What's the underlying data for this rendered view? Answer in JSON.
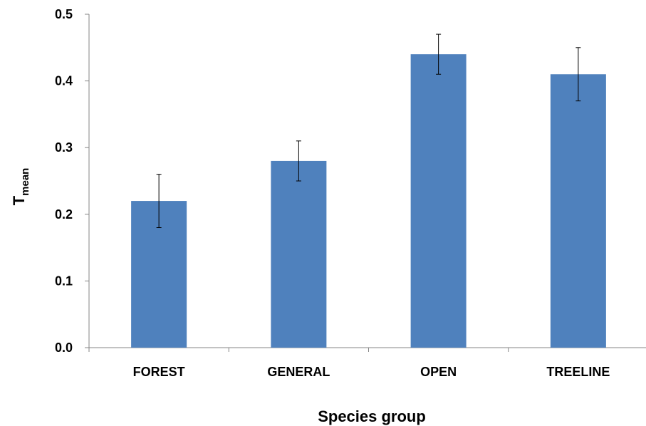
{
  "chart_data": {
    "type": "bar",
    "categories": [
      "FOREST",
      "GENERAL",
      "OPEN",
      "TREELINE"
    ],
    "values": [
      0.22,
      0.28,
      0.44,
      0.41
    ],
    "error_low": [
      0.18,
      0.25,
      0.41,
      0.37
    ],
    "error_high": [
      0.26,
      0.31,
      0.47,
      0.45
    ],
    "xlabel": "Species group",
    "ylabel_main": "T",
    "ylabel_sub": "mean",
    "ylim": [
      0,
      0.5
    ],
    "yticks": [
      "0.0",
      "0.1",
      "0.2",
      "0.3",
      "0.4",
      "0.5"
    ],
    "grid": false,
    "bar_color": "#4F81BD"
  }
}
